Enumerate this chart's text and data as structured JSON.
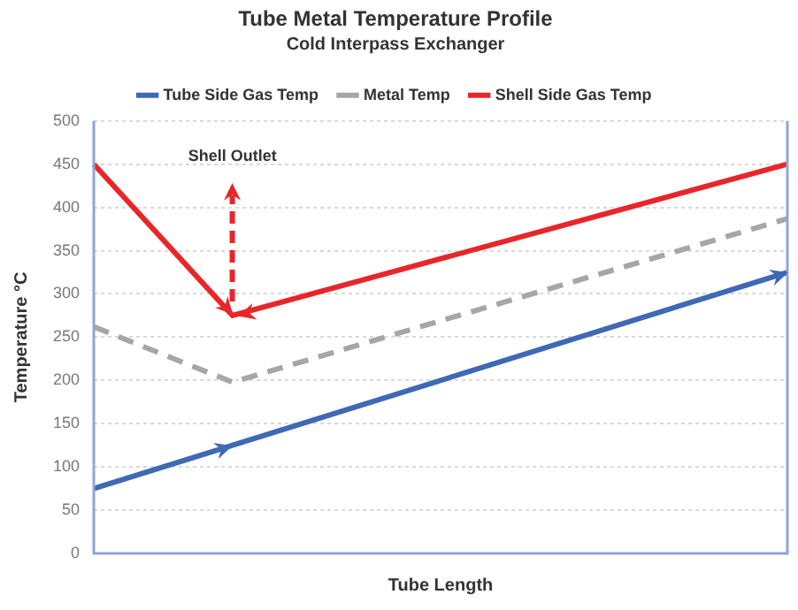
{
  "chart_data": {
    "type": "line",
    "title": "Tube Metal Temperature Profile",
    "subtitle": "Cold Interpass Exchanger",
    "xlabel": "Tube Length",
    "ylabel": "Temperature °C",
    "categories": [
      null,
      null,
      null,
      null,
      null,
      null
    ],
    "ylim": [
      0,
      500
    ],
    "yticks": [
      0,
      50,
      100,
      150,
      200,
      250,
      300,
      350,
      400,
      450,
      500
    ],
    "tick_labels": "y",
    "grid": "y",
    "legend": "top",
    "marker": "none",
    "series": [
      {
        "name": "Tube Side Gas Temp",
        "color": "#3f68b5",
        "values": [
          75,
          125,
          null,
          null,
          null,
          325
        ],
        "line_style": "solid"
      },
      {
        "name": "Metal Temp",
        "color": "#a6a6a6",
        "values": [
          262,
          198,
          null,
          null,
          null,
          387
        ],
        "line_style": "dashed"
      },
      {
        "name": "Shell Side Gas Temp",
        "color": "#e8262a",
        "values": [
          450,
          275,
          null,
          null,
          null,
          450
        ],
        "line_style": "solid"
      }
    ],
    "annotations": [
      "Shell Outlet"
    ]
  }
}
